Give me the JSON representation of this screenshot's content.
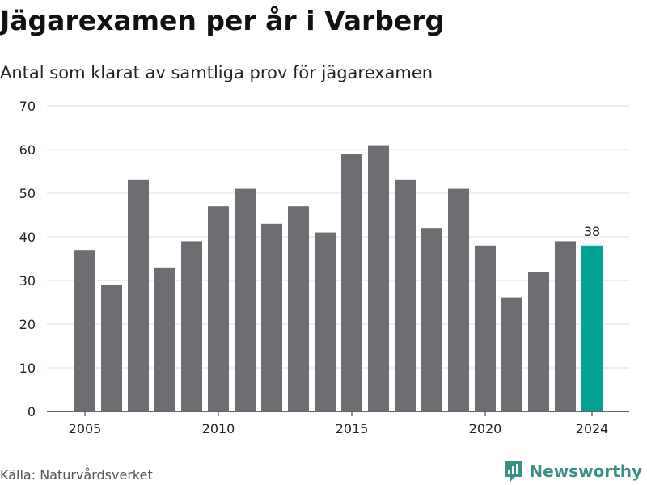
{
  "title": "Jägarexamen per år i Varberg",
  "subtitle": "Antal som klarat av samtliga prov för jägarexamen",
  "source": "Källa: Naturvårdsverket",
  "brand": {
    "name": "Newsworthy",
    "color": "#3a8f86"
  },
  "colors": {
    "bar": "#6e6d72",
    "highlight": "#00a396",
    "grid": "#dddddd",
    "axis": "#333333"
  },
  "chart_data": {
    "type": "bar",
    "x": [
      2005,
      2006,
      2007,
      2008,
      2009,
      2010,
      2011,
      2012,
      2013,
      2014,
      2015,
      2016,
      2017,
      2018,
      2019,
      2020,
      2021,
      2022,
      2023,
      2024
    ],
    "values": [
      37,
      29,
      53,
      33,
      39,
      47,
      51,
      43,
      47,
      41,
      59,
      61,
      53,
      42,
      51,
      38,
      26,
      32,
      39,
      38
    ],
    "highlight_x": 2024,
    "value_label": "38",
    "xticks": [
      "2005",
      "2010",
      "2015",
      "2020",
      "2024"
    ],
    "yticks": [
      "0",
      "10",
      "20",
      "30",
      "40",
      "50",
      "60",
      "70"
    ],
    "ylim": [
      0,
      70
    ],
    "xlabel": "",
    "ylabel": "",
    "grid": true
  }
}
